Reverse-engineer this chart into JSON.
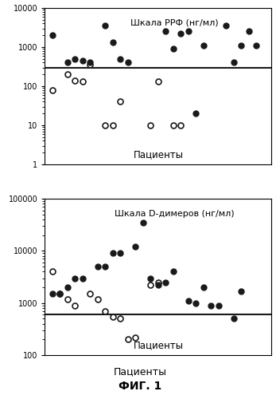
{
  "chart1": {
    "title": "Шкала РРФ (нг/мл)",
    "xlabel": "Пациенты",
    "ylim": [
      1,
      10000
    ],
    "threshold": 300,
    "filled_dots": [
      2000,
      400,
      500,
      450,
      400,
      3500,
      1300,
      500,
      400,
      2500,
      900,
      2200,
      2500,
      20,
      1100,
      3500,
      400,
      1100,
      2500,
      1100
    ],
    "filled_x": [
      1,
      3,
      4,
      5,
      6,
      8,
      9,
      10,
      11,
      16,
      17,
      18,
      19,
      20,
      21,
      24,
      25,
      26,
      27,
      28
    ],
    "open_dots": [
      80,
      200,
      140,
      130,
      350,
      10,
      10,
      40,
      10,
      130,
      10,
      10
    ],
    "open_x": [
      1,
      3,
      4,
      5,
      6,
      8,
      9,
      10,
      14,
      15,
      17,
      18
    ]
  },
  "chart2": {
    "title": "Шкала D-димеров (нг/мл)",
    "xlabel": "Пациенты",
    "ylim": [
      100,
      100000
    ],
    "threshold": 600,
    "filled_dots": [
      1500,
      1500,
      2000,
      3000,
      3000,
      5000,
      5000,
      9000,
      9000,
      12000,
      35000,
      3000,
      2200,
      2500,
      4000,
      1100,
      1000,
      2000,
      900,
      900,
      500,
      1700
    ],
    "filled_x": [
      1,
      2,
      3,
      4,
      5,
      7,
      8,
      9,
      10,
      12,
      13,
      14,
      15,
      16,
      17,
      19,
      20,
      21,
      22,
      23,
      25,
      26
    ],
    "open_dots": [
      4000,
      1500,
      1200,
      900,
      1500,
      1200,
      700,
      550,
      500,
      200,
      220,
      2200,
      2500
    ],
    "open_x": [
      1,
      2,
      3,
      4,
      6,
      7,
      8,
      9,
      10,
      11,
      12,
      14,
      15
    ]
  },
  "fig_label": "ФИГ. 1",
  "patients_label": "Пациенты",
  "bg_color": "#ffffff",
  "dot_color_filled": "#1a1a1a",
  "dot_color_open": "#1a1a1a",
  "line_color": "#1a1a1a",
  "marker_size": 5
}
